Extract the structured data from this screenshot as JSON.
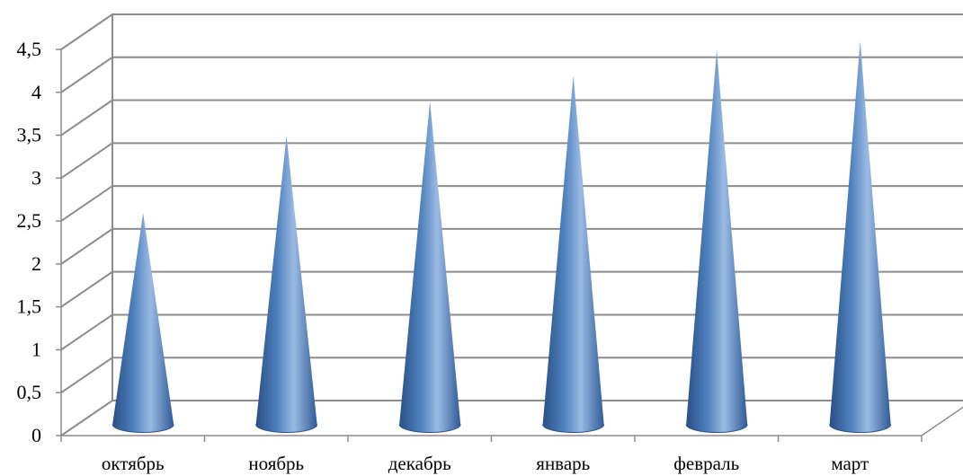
{
  "chart_data": {
    "type": "bar",
    "style": "3d-cone",
    "categories": [
      "октябрь",
      "ноябрь",
      "декабрь",
      "январь",
      "февраль",
      "март"
    ],
    "values": [
      2.3,
      3.2,
      3.6,
      3.9,
      4.2,
      4.3
    ],
    "ylim": [
      0,
      4.5
    ],
    "y_ticks": [
      "0",
      "0,5",
      "1",
      "1,5",
      "2",
      "2,5",
      "3",
      "3,5",
      "4",
      "4,5"
    ],
    "grid": true,
    "legend": "none",
    "colors": {
      "cone_dark": "#2a4f86",
      "cone_mid": "#4f81bd",
      "cone_light": "#9bbbe3",
      "grid": "#8c8c8c"
    }
  }
}
